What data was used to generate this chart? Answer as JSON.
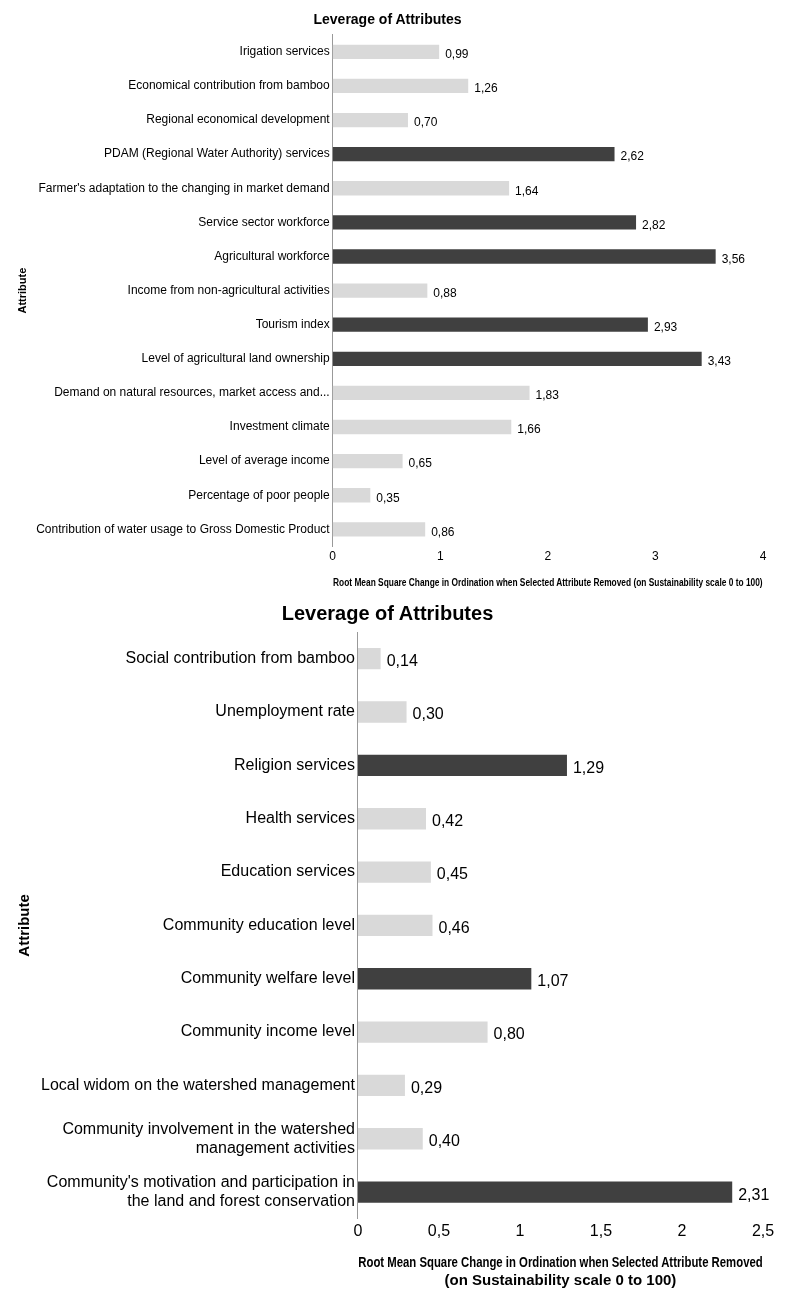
{
  "chart_data": [
    {
      "type": "bar",
      "orientation": "horizontal",
      "title": "Leverage of Attributes",
      "xlabel": "Root Mean Square Change in Ordination when Selected Attribute Removed (on Sustainability scale 0 to 100)",
      "ylabel": "Attribute",
      "categories": [
        "Irigation services",
        "Economical contribution from bamboo",
        "Regional economical development",
        "PDAM (Regional Water Authority) services",
        "Farmer's adaptation to the changing in market demand",
        "Service sector workforce",
        "Agricultural workforce",
        "Income from non-agricultural activities",
        "Tourism index",
        "Level of agricultural land ownership",
        "Demand on natural resources, market access and...",
        "Investment climate",
        "Level of average income",
        "Percentage of poor people",
        "Contribution of water usage to Gross Domestic Product"
      ],
      "values": [
        0.99,
        1.26,
        0.7,
        2.62,
        1.64,
        2.82,
        3.56,
        0.88,
        2.93,
        3.43,
        1.83,
        1.66,
        0.65,
        0.35,
        0.86
      ],
      "value_labels": [
        "0,99",
        "1,26",
        "0,70",
        "2,62",
        "1,64",
        "2,82",
        "3,56",
        "0,88",
        "2,93",
        "3,43",
        "1,83",
        "1,66",
        "0,65",
        "0,35",
        "0,86"
      ],
      "colors": [
        "#d9d9d9",
        "#d9d9d9",
        "#d9d9d9",
        "#404040",
        "#d9d9d9",
        "#404040",
        "#404040",
        "#d9d9d9",
        "#404040",
        "#404040",
        "#d9d9d9",
        "#d9d9d9",
        "#d9d9d9",
        "#d9d9d9",
        "#d9d9d9"
      ],
      "xlim": [
        0,
        4
      ],
      "xticks": [
        0,
        1,
        2,
        3,
        4
      ]
    },
    {
      "type": "bar",
      "orientation": "horizontal",
      "title": "Leverage of Attributes",
      "xlabel": "Root Mean Square Change in Ordination when Selected Attribute Removed (on Sustainability scale 0 to 100)",
      "ylabel": "Attribute",
      "categories": [
        "Social contribution from bamboo",
        "Unemployment rate",
        "Religion services",
        "Health services",
        "Education services",
        "Community education level",
        "Community welfare level",
        "Community income level",
        "Local widom on the watershed management",
        "Community involvement in the watershed management activities",
        "Community's motivation and participation in the land and forest conservation"
      ],
      "values": [
        0.14,
        0.3,
        1.29,
        0.42,
        0.45,
        0.46,
        1.07,
        0.8,
        0.29,
        0.4,
        2.31
      ],
      "value_labels": [
        "0,14",
        "0,30",
        "1,29",
        "0,42",
        "0,45",
        "0,46",
        "1,07",
        "0,80",
        "0,29",
        "0,40",
        "2,31"
      ],
      "colors": [
        "#d9d9d9",
        "#d9d9d9",
        "#404040",
        "#d9d9d9",
        "#d9d9d9",
        "#d9d9d9",
        "#404040",
        "#d9d9d9",
        "#d9d9d9",
        "#d9d9d9",
        "#404040"
      ],
      "xlim": [
        0,
        2.5
      ],
      "xticks": [
        0,
        {
          "value": 0.5,
          "label": "0,5"
        },
        1,
        {
          "value": 1.5,
          "label": "1,5"
        },
        2,
        {
          "value": 2.5,
          "label": "2,5"
        }
      ]
    }
  ]
}
